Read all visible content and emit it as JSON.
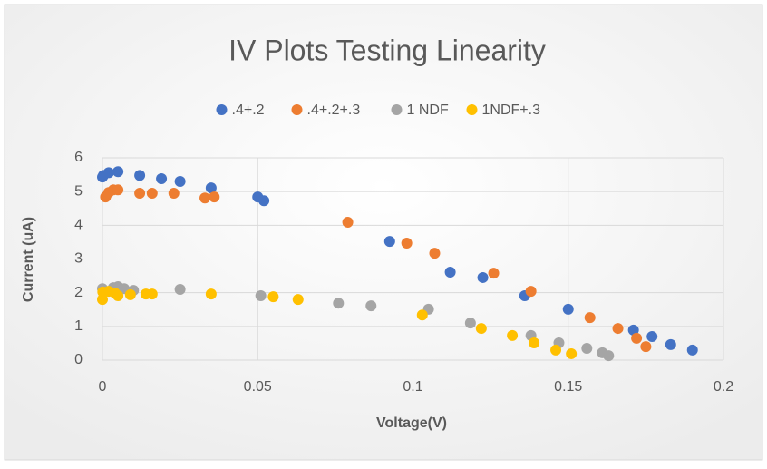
{
  "chart_data": {
    "type": "scatter",
    "title": "IV Plots Testing Linearity",
    "x_label": "Voltage(V)",
    "y_label": "Current (uA)",
    "xlim": [
      0,
      0.2
    ],
    "xticks": [
      0,
      0.05,
      0.1,
      0.15,
      0.2
    ],
    "ylim": [
      0,
      6
    ],
    "yticks": [
      0,
      1,
      2,
      3,
      4,
      5,
      6
    ],
    "grid": true,
    "legend": "top",
    "series": [
      {
        "name": ".4+.2",
        "color": "#4472c4",
        "x": [
          0.0,
          0.0003,
          0.002,
          0.005,
          0.012,
          0.019,
          0.025,
          0.035,
          0.05,
          0.052,
          0.0925,
          0.112,
          0.1225,
          0.136,
          0.15,
          0.171,
          0.177,
          0.183,
          0.19
        ],
        "values": [
          5.43,
          5.48,
          5.56,
          5.59,
          5.48,
          5.38,
          5.3,
          5.11,
          4.84,
          4.73,
          3.52,
          2.61,
          2.45,
          1.91,
          1.51,
          0.89,
          0.7,
          0.46,
          0.3
        ]
      },
      {
        "name": ".4+.2+.3",
        "color": "#ed7d31",
        "x": [
          0.001,
          0.002,
          0.0035,
          0.005,
          0.012,
          0.016,
          0.023,
          0.033,
          0.036,
          0.079,
          0.098,
          0.107,
          0.126,
          0.138,
          0.157,
          0.166,
          0.172,
          0.175
        ],
        "values": [
          4.84,
          4.97,
          5.05,
          5.05,
          4.95,
          4.95,
          4.95,
          4.81,
          4.84,
          4.09,
          3.47,
          3.17,
          2.58,
          2.04,
          1.26,
          0.94,
          0.65,
          0.4
        ]
      },
      {
        "name": "1 NDF",
        "color": "#a5a5a5",
        "x": [
          0.0,
          0.0035,
          0.005,
          0.007,
          0.01,
          0.025,
          0.051,
          0.076,
          0.0865,
          0.105,
          0.1185,
          0.138,
          0.147,
          0.156,
          0.161,
          0.163
        ],
        "values": [
          2.12,
          2.15,
          2.18,
          2.12,
          2.07,
          2.1,
          1.91,
          1.69,
          1.61,
          1.51,
          1.1,
          0.73,
          0.51,
          0.35,
          0.22,
          0.13
        ]
      },
      {
        "name": "1NDF+.3",
        "color": "#ffc000",
        "x": [
          0.0,
          0.0001,
          0.002,
          0.004,
          0.005,
          0.009,
          0.014,
          0.016,
          0.035,
          0.055,
          0.063,
          0.103,
          0.122,
          0.132,
          0.139,
          0.146,
          0.151
        ],
        "values": [
          1.8,
          2.02,
          2.04,
          1.99,
          1.91,
          1.94,
          1.96,
          1.96,
          1.96,
          1.88,
          1.8,
          1.34,
          0.94,
          0.73,
          0.51,
          0.3,
          0.19
        ]
      }
    ]
  }
}
